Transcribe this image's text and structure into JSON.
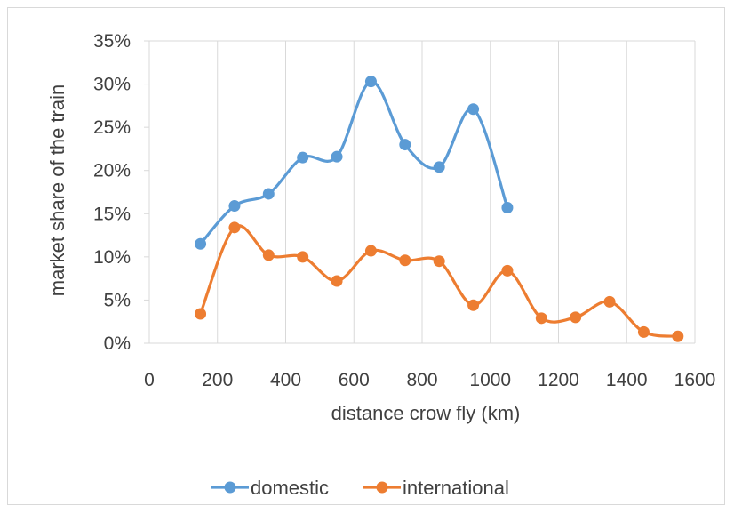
{
  "chart_data": {
    "type": "line",
    "title": "",
    "xlabel": "distance crow fly (km)",
    "ylabel": "market share of the train",
    "xlim": [
      0,
      1600
    ],
    "ylim": [
      0,
      0.35
    ],
    "x_ticks": [
      0,
      200,
      400,
      600,
      800,
      1000,
      1200,
      1400,
      1600
    ],
    "x_tick_labels": [
      "0",
      "200",
      "400",
      "600",
      "800",
      "1000",
      "1200",
      "1400",
      "1600"
    ],
    "y_ticks": [
      0,
      0.05,
      0.1,
      0.15,
      0.2,
      0.25,
      0.3,
      0.35
    ],
    "y_tick_labels": [
      "0%",
      "5%",
      "10%",
      "15%",
      "20%",
      "25%",
      "30%",
      "35%"
    ],
    "grid": "vertical",
    "smooth": true,
    "legend_position": "bottom",
    "series": [
      {
        "name": "domestic",
        "color": "#5b9bd5",
        "x": [
          150,
          250,
          350,
          450,
          550,
          650,
          750,
          850,
          950,
          1050
        ],
        "y": [
          0.115,
          0.159,
          0.173,
          0.215,
          0.216,
          0.303,
          0.23,
          0.204,
          0.271,
          0.157
        ]
      },
      {
        "name": "international",
        "color": "#ed7d31",
        "x": [
          150,
          250,
          350,
          450,
          550,
          650,
          750,
          850,
          950,
          1050,
          1150,
          1250,
          1350,
          1450,
          1550
        ],
        "y": [
          0.034,
          0.134,
          0.102,
          0.1,
          0.072,
          0.107,
          0.096,
          0.095,
          0.044,
          0.084,
          0.029,
          0.03,
          0.048,
          0.013,
          0.008
        ]
      }
    ]
  }
}
